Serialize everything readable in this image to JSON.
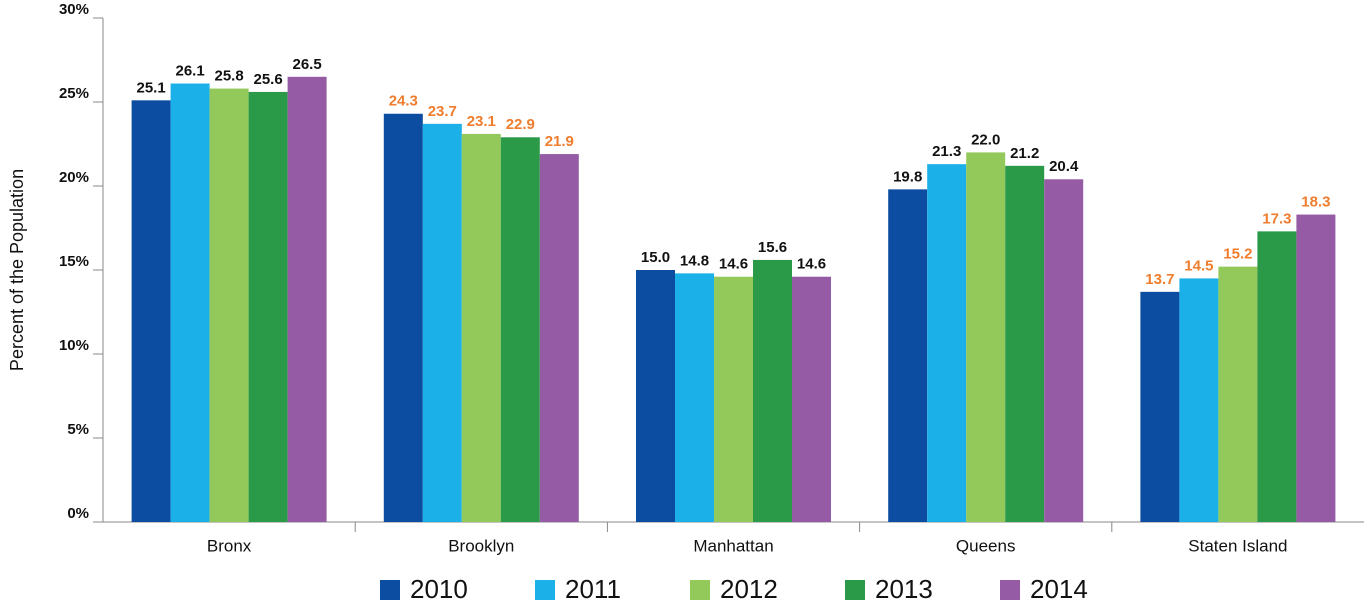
{
  "chart_data": {
    "type": "bar",
    "ylabel": "Percent of the Population",
    "categories": [
      "Bronx",
      "Brooklyn",
      "Manhattan",
      "Queens",
      "Staten Island"
    ],
    "series": [
      {
        "name": "2010",
        "color": "#0c4da2",
        "values": [
          25.1,
          24.3,
          15.0,
          19.8,
          13.7
        ],
        "value_labels": [
          "25.1",
          "24.3",
          "15.0",
          "19.8",
          "13.7"
        ]
      },
      {
        "name": "2011",
        "color": "#1cb0e8",
        "values": [
          26.1,
          23.7,
          14.8,
          21.3,
          14.5
        ],
        "value_labels": [
          "26.1",
          "23.7",
          "14.8",
          "21.3",
          "14.5"
        ]
      },
      {
        "name": "2012",
        "color": "#93c95a",
        "values": [
          25.8,
          23.1,
          14.6,
          22.0,
          15.2
        ],
        "value_labels": [
          "25.8",
          "23.1",
          "14.6",
          "22.0",
          "15.2"
        ]
      },
      {
        "name": "2013",
        "color": "#2a9a48",
        "values": [
          25.6,
          22.9,
          15.6,
          21.2,
          17.3
        ],
        "value_labels": [
          "25.6",
          "22.9",
          "15.6",
          "21.2",
          "17.3"
        ]
      },
      {
        "name": "2014",
        "color": "#955ba5",
        "values": [
          26.5,
          21.9,
          14.6,
          20.4,
          18.3
        ],
        "value_labels": [
          "26.5",
          "21.9",
          "14.6",
          "20.4",
          "18.3"
        ]
      }
    ],
    "category_label_colors": [
      "#111111",
      "#ef7d2d",
      "#111111",
      "#111111",
      "#ef7d2d"
    ],
    "ylim": [
      0,
      30
    ],
    "yticks": [
      {
        "value": 0,
        "label": "0%"
      },
      {
        "value": 5,
        "label": "5%"
      },
      {
        "value": 10,
        "label": "10%"
      },
      {
        "value": 15,
        "label": "15%"
      },
      {
        "value": 20,
        "label": "20%"
      },
      {
        "value": 25,
        "label": "25%"
      },
      {
        "value": 30,
        "label": "30%"
      }
    ],
    "grid": false,
    "legend": "bottom"
  }
}
